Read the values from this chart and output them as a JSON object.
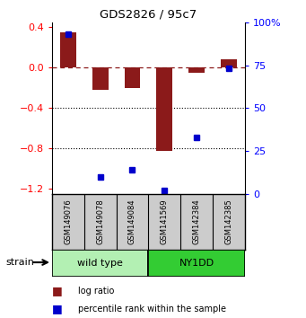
{
  "title": "GDS2826 / 95c7",
  "samples": [
    "GSM149076",
    "GSM149078",
    "GSM149084",
    "GSM141569",
    "GSM142384",
    "GSM142385"
  ],
  "log_ratio": [
    0.35,
    -0.22,
    -0.2,
    -0.82,
    -0.05,
    0.08
  ],
  "percentile_rank": [
    93,
    10,
    14,
    2,
    33,
    73
  ],
  "groups": [
    {
      "label": "wild type",
      "samples": [
        0,
        1,
        2
      ],
      "color": "#b3f0b3"
    },
    {
      "label": "NY1DD",
      "samples": [
        3,
        4,
        5
      ],
      "color": "#33cc33"
    }
  ],
  "bar_color": "#8b1a1a",
  "dot_color": "#0000cc",
  "ylim_left": [
    -1.25,
    0.45
  ],
  "ylim_right": [
    0,
    100
  ],
  "yticks_left": [
    0.4,
    0.0,
    -0.4,
    -0.8,
    -1.2
  ],
  "yticks_right": [
    100,
    75,
    50,
    25,
    0
  ],
  "hline_y": 0.0,
  "dotted_lines": [
    -0.4,
    -0.8
  ],
  "bg_color": "#ffffff",
  "strain_label": "strain",
  "legend": [
    {
      "label": "log ratio",
      "color": "#8b1a1a"
    },
    {
      "label": "percentile rank within the sample",
      "color": "#0000cc"
    }
  ],
  "label_bg": "#cccccc",
  "border_color": "#000000"
}
